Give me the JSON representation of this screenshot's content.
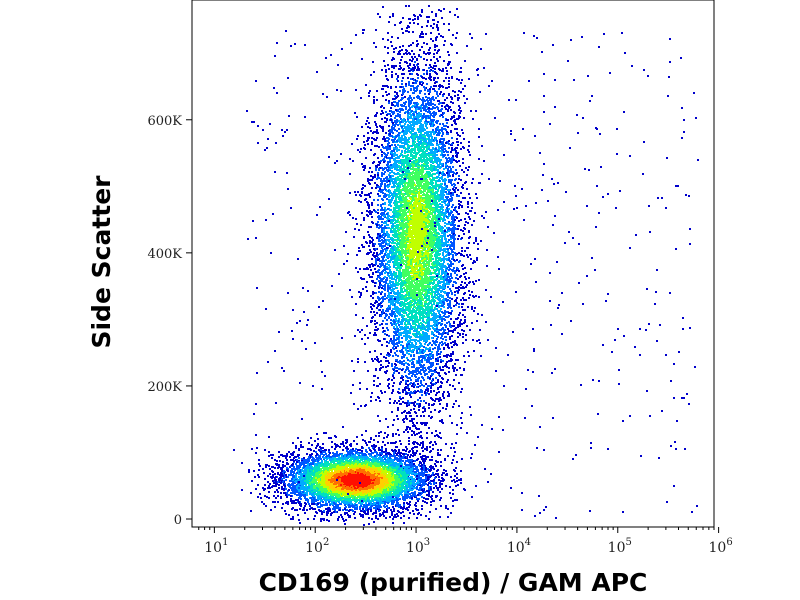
{
  "chart_data": {
    "type": "scatter",
    "subtype": "flow-cytometry density dot plot",
    "title": "",
    "xlabel": "CD169 (purified) / GAM APC",
    "ylabel": "Side Scatter",
    "x_scale": "log",
    "y_scale": "linear",
    "xlim": [
      6,
      900000
    ],
    "ylim": [
      -12000,
      780000
    ],
    "x_ticks": [
      {
        "value": 10,
        "base": "10",
        "exp": "1"
      },
      {
        "value": 100,
        "base": "10",
        "exp": "2"
      },
      {
        "value": 1000,
        "base": "10",
        "exp": "3"
      },
      {
        "value": 10000,
        "base": "10",
        "exp": "4"
      },
      {
        "value": 100000,
        "base": "10",
        "exp": "5"
      },
      {
        "value": 1000000,
        "base": "10",
        "exp": "6"
      }
    ],
    "y_ticks": [
      {
        "value": 0,
        "label": "0"
      },
      {
        "value": 200000,
        "label": "200K"
      },
      {
        "value": 400000,
        "label": "400K"
      },
      {
        "value": 600000,
        "label": "600K"
      }
    ],
    "grid": false,
    "legend": "none",
    "color_scale": [
      "#0000cc",
      "#0055ff",
      "#00aaff",
      "#00e0c0",
      "#40ff60",
      "#c0ff00",
      "#ffd000",
      "#ff7000",
      "#ff1000"
    ],
    "populations": [
      {
        "center_x": 250,
        "center_y": 60000,
        "spread_x_log10": 0.35,
        "spread_y": 22000,
        "density": "high"
      },
      {
        "center_x": 1000,
        "center_y": 430000,
        "spread_x_log10": 0.22,
        "spread_y": 130000,
        "density": "medium"
      }
    ]
  }
}
